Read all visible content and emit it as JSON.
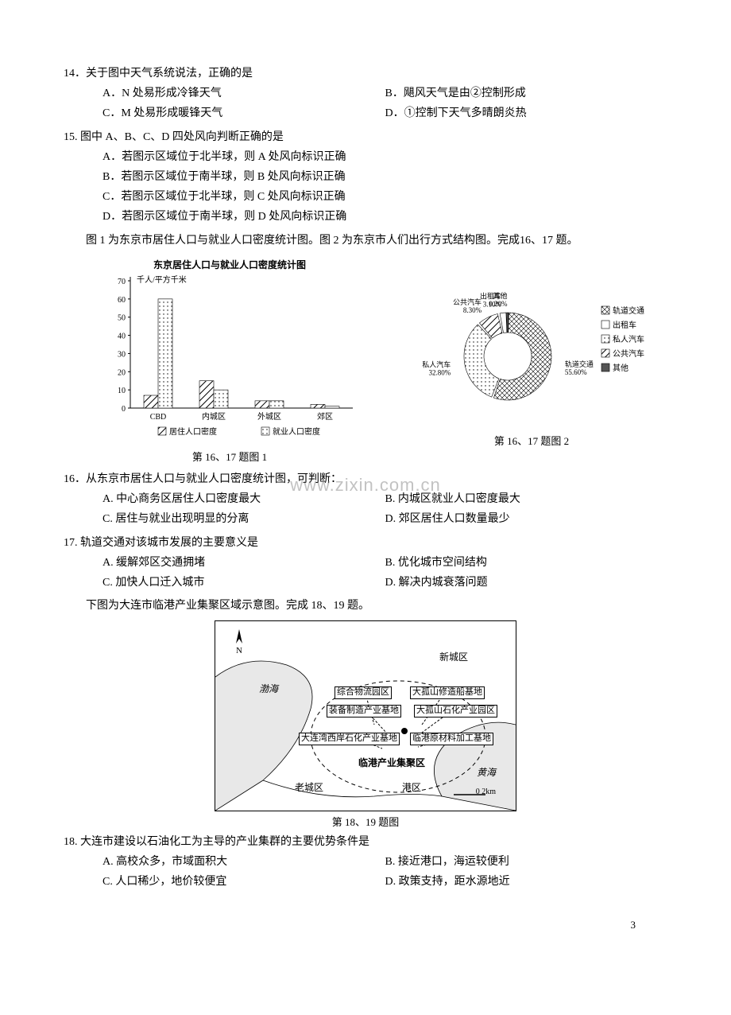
{
  "q14": {
    "title": "14．关于图中天气系统说法，正确的是",
    "opts": [
      "A．N 处易形成冷锋天气",
      "B．飓风天气是由②控制形成",
      "C．M 处易形成暖锋天气",
      "D．①控制下天气多晴朗炎热"
    ]
  },
  "q15": {
    "title": "15. 图中 A、B、C、D 四处风向判断正确的是",
    "opts": [
      "A．若图示区域位于北半球，则 A 处风向标识正确",
      "B．若图示区域位于南半球，则 B 处风向标识正确",
      "C．若图示区域位于北半球，则 C 处风向标识正确",
      "D．若图示区域位于南半球，则 D 处风向标识正确"
    ]
  },
  "intro1": "图 1 为东京市居住人口与就业人口密度统计图。图 2 为东京市人们出行方式结构图。完成16、17 题。",
  "fig1": {
    "title": "东京居住人口与就业人口密度统计图",
    "ylabel": "千人/平方千米",
    "ymax": 70,
    "ytick": 10,
    "categories": [
      "CBD",
      "内城区",
      "外城区",
      "郊区"
    ],
    "series": [
      {
        "name": "居住人口密度",
        "values": [
          7,
          15,
          4,
          2
        ],
        "pattern": "hatch"
      },
      {
        "name": "就业人口密度",
        "values": [
          60,
          10,
          4,
          1
        ],
        "pattern": "dots"
      }
    ],
    "legend": [
      "居住人口密度",
      "就业人口密度"
    ],
    "caption": "第 16、17 题图 1"
  },
  "fig2": {
    "slices": [
      {
        "label": "轨道交通",
        "pct": 55.6,
        "pattern": "cross"
      },
      {
        "label": "私人汽车",
        "pct": 32.8,
        "pattern": "dots"
      },
      {
        "label": "公共汽车",
        "pct": 8.3,
        "pattern": "hatch"
      },
      {
        "label": "出租车",
        "pct": 3.1,
        "pattern": "plain"
      },
      {
        "label": "其他",
        "pct": 0.2,
        "pattern": "dark"
      }
    ],
    "legend": [
      "轨道交通",
      "出租车",
      "私人汽车",
      "公共汽车",
      "其他"
    ],
    "caption": "第 16、17 题图 2"
  },
  "q16": {
    "title": "16．从东京市居住人口与就业人口密度统计图，可判断：",
    "opts": [
      "A. 中心商务区居住人口密度最大",
      "B. 内城区就业人口密度最大",
      "C. 居住与就业出现明显的分离",
      "D. 郊区居住人口数量最少"
    ]
  },
  "q17": {
    "title": "17. 轨道交通对该城市发展的主要意义是",
    "opts": [
      "A. 缓解郊区交通拥堵",
      "B. 优化城市空间结构",
      "C. 加快人口迁入城市",
      "D. 解决内城衰落问题"
    ]
  },
  "intro2": "下图为大连市临港产业集聚区域示意图。完成 18、19 题。",
  "map": {
    "labels": {
      "bohai": "渤海",
      "huanghai": "黄海",
      "old": "老城区",
      "new": "新城区",
      "port": "港区",
      "cluster": "临港产业集聚区",
      "box1": "综合物流园区",
      "box2": "大孤山修造船基地",
      "box3": "装备制造产业基地",
      "box4": "大孤山石化产业园区",
      "box5": "大连湾西岸石化产业基地",
      "box6": "临港原材料加工基地",
      "scale": "0    2km",
      "north": "N"
    },
    "caption": "第 18、19 题图"
  },
  "q18": {
    "title": "18. 大连市建设以石油化工为主导的产业集群的主要优势条件是",
    "opts": [
      "A. 高校众多，市域面积大",
      "B. 接近港口，海运较便利",
      "C. 人口稀少，地价较便宜",
      "D. 政策支持，距水源地近"
    ]
  },
  "watermark": "www.zixin.com.cn",
  "page": "3"
}
